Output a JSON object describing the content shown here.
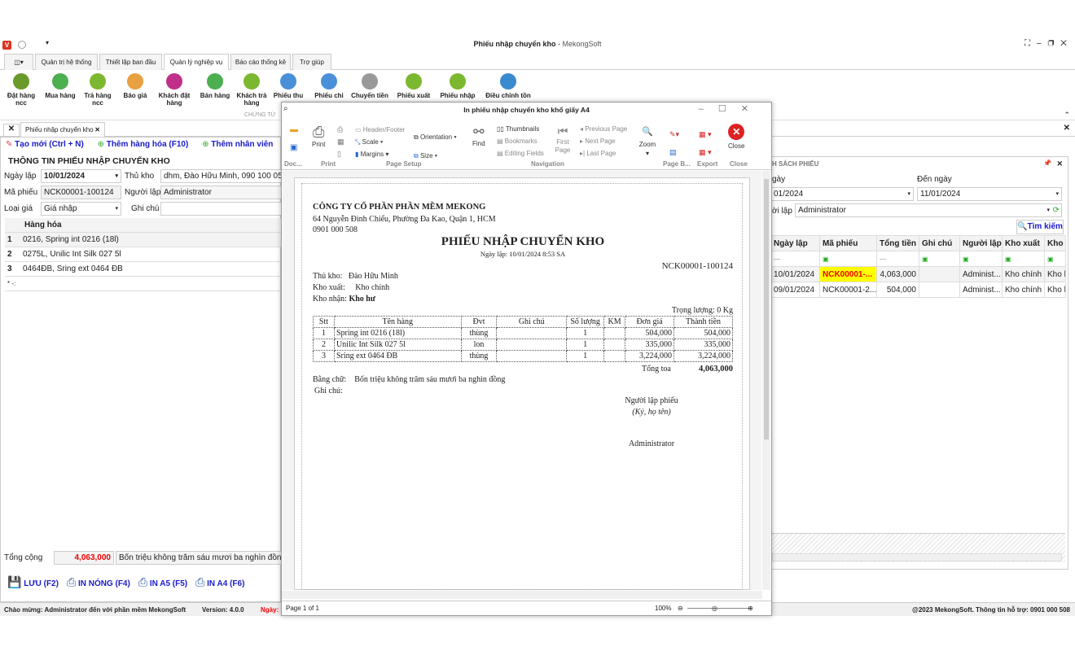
{
  "window": {
    "title": "Phiếu nhập chuyển kho",
    "app": "MekongSoft"
  },
  "tabs": [
    "Quản trị hệ thống",
    "Thiết lập ban đầu",
    "Quản lý nghiệp vụ",
    "Báo cáo thống kê",
    "Trợ giúp"
  ],
  "ribbon": {
    "buttons": [
      {
        "label": "Đặt hàng ncc",
        "color": "#6a9a2a"
      },
      {
        "label": "Mua hàng",
        "color": "#4caf50"
      },
      {
        "label": "Trả hàng ncc",
        "color": "#7cb82f"
      },
      {
        "label": "Báo giá",
        "color": "#e8a040"
      },
      {
        "label": "Khách đặt hàng",
        "color": "#c0308a"
      },
      {
        "label": "Bán hàng",
        "color": "#4caf50"
      },
      {
        "label": "Khách trả hàng",
        "color": "#7cb82f"
      },
      {
        "label": "Phiếu thu",
        "color": "#4a90d9"
      },
      {
        "label": "Phiếu chi",
        "color": "#4a90d9"
      },
      {
        "label": "Chuyển tiền",
        "color": "#999"
      },
      {
        "label": "Phiếu xuất",
        "color": "#7cb82f"
      },
      {
        "label": "Phiếu nhập",
        "color": "#7cb82f"
      },
      {
        "label": "Điều chỉnh tồn",
        "color": "#3a8ad0"
      }
    ],
    "group": "CHỨNG TỪ"
  },
  "doc_tab": "Phiếu nhập chuyển kho",
  "left": {
    "toolbar": [
      "Tạo mới (Ctrl + N)",
      "Thêm hàng hóa (F10)",
      "Thêm nhân viên"
    ],
    "section_title": "THÔNG TIN PHIẾU NHẬP CHUYỂN KHO",
    "labels": {
      "ngay_lap": "Ngày lập",
      "ma_phieu": "Mã phiếu",
      "loai_gia": "Loại giá",
      "thu_kho": "Thủ kho",
      "nguoi_lap": "Người lập",
      "ghi_chu": "Ghi chú"
    },
    "values": {
      "ngay_lap": "10/01/2024",
      "ma_phieu": "NCK00001-100124",
      "loai_gia": "Giá nhập",
      "thu_kho": "dhm, Đào Hữu Minh, 090 100 05",
      "nguoi_lap": "Administrator",
      "ghi_chu": ""
    },
    "grid_header": "Hàng hóa",
    "rows": [
      {
        "n": "1",
        "item": "0216, Spring int 0216 (18l)"
      },
      {
        "n": "2",
        "item": "0275L, Unilic Int Silk 027 5l"
      },
      {
        "n": "3",
        "item": "0464ĐB, Sring ext 0464 ĐB"
      }
    ],
    "new_row": "* -:",
    "total_label": "Tổng cộng",
    "total": "4,063,000",
    "total_words": "Bốn triệu không trăm sáu mươi ba nghìn đồng",
    "actions": [
      "LƯU (F2)",
      "IN NÓNG (F4)",
      "IN A5 (F5)",
      "IN A4 (F6)"
    ]
  },
  "dialog": {
    "title": "In phiếu nhập chuyển kho khổ giấy A4",
    "ribbon": {
      "print": "Print",
      "header_footer": "Header/Footer",
      "scale": "Scale",
      "margins": "Margins",
      "orientation": "Orientation",
      "size": "Size",
      "find": "Find",
      "thumbnails": "Thumbnails",
      "bookmarks": "Bookmarks",
      "editing_fields": "Editing Fields",
      "first_page": "First Page",
      "previous_page": "Previous Page",
      "next_page": "Next Page",
      "last_page": "Last Page",
      "zoom": "Zoom",
      "close": "Close"
    },
    "groups": [
      "Doc...",
      "Print",
      "Page Setup",
      "Navigation",
      "Page B...",
      "Export",
      "Close"
    ],
    "status": {
      "page": "Page 1 of 1",
      "zoom": "100%"
    }
  },
  "report": {
    "company": "CÔNG TY CỔ PHẦN PHẦN MỀM MEKONG",
    "address": "64 Nguyễn Đình Chiểu, Phường Đa Kao, Quận 1, HCM",
    "phone": "0901 000 508",
    "title": "PHIẾU NHẬP CHUYỂN KHO",
    "date": "Ngày lập: 10/01/2024  8:53 SA",
    "code": "NCK00001-100124",
    "thu_kho_label": "Thủ kho:",
    "thu_kho": "Đào Hữu Minh",
    "kho_xuat_label": "Kho xuất:",
    "kho_xuat": "Kho chính",
    "kho_nhan_label": "Kho nhận:",
    "kho_nhan": "Kho hư",
    "weight": "Trọng lượng: 0 Kg",
    "columns": [
      "Stt",
      "Tên hàng",
      "Đvt",
      "Ghi chú",
      "Số lượng",
      "KM",
      "Đơn giá",
      "Thành tiền"
    ],
    "rows": [
      [
        "1",
        "Spring int 0216 (18l)",
        "thùng",
        "",
        "1",
        "",
        "504,000",
        "504,000"
      ],
      [
        "2",
        "Unilic Int Silk 027 5l",
        "lon",
        "",
        "1",
        "",
        "335,000",
        "335,000"
      ],
      [
        "3",
        "Sring ext 0464 ĐB",
        "thùng",
        "",
        "1",
        "",
        "3,224,000",
        "3,224,000"
      ]
    ],
    "total_label": "Tổng toa",
    "total": "4,063,000",
    "words_label": "Bằng chữ:",
    "words": "Bốn triệu không trăm sáu mươi ba nghìn đồng",
    "note_label": "Ghi chú:",
    "signer_title": "Người lập phiếu",
    "signer_hint": "(Ký, họ tên)",
    "signer": "Administrator"
  },
  "right": {
    "title": "H SÁCH PHIẾU",
    "from_label": "gày",
    "from": "01/2024",
    "to_label": "Đến ngày",
    "to": "11/01/2024",
    "user_label": "ời lập",
    "user": "Administrator",
    "search": "Tìm kiếm",
    "columns": [
      "Ngày lập",
      "Mã phiếu",
      "Tổng tiền",
      "Ghi chú",
      "Người lập",
      "Kho xuất",
      "Kho r"
    ],
    "rows": [
      [
        "10/01/2024",
        "NCK00001-...",
        "4,063,000",
        "",
        "Administ...",
        "Kho chính",
        "Kho h"
      ],
      [
        "09/01/2024",
        "NCK00001-2...",
        "504,000",
        "",
        "Administ...",
        "Kho chính",
        "Kho h"
      ]
    ]
  },
  "status": {
    "welcome": "Chào mừng: Administrator đến với phần mềm MekongSoft",
    "version": "Version: 4.0.0",
    "date_label": "Ngày:",
    "copyright": "@2023 MekongSoft. Thông tin hỗ trợ: 0901 000 508"
  }
}
